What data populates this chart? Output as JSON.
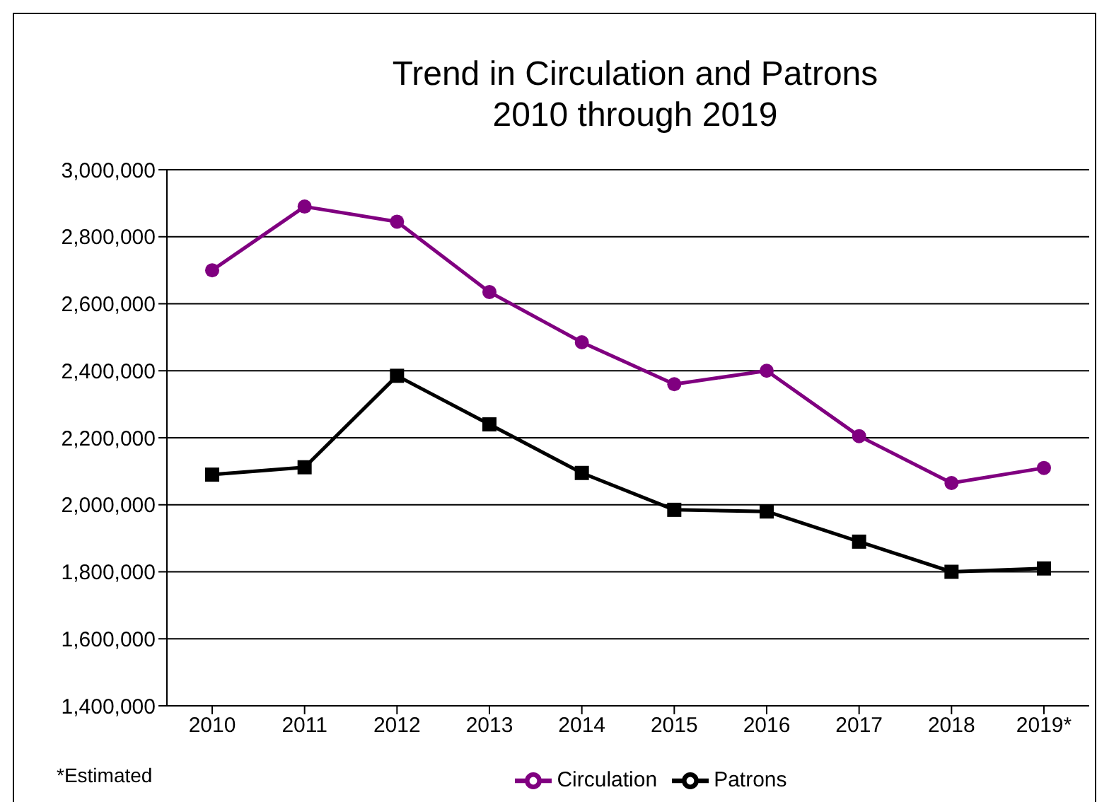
{
  "chart_data": {
    "type": "line",
    "title": "Trend in Circulation and Patrons\n2010 through 2019",
    "categories": [
      "2010",
      "2011",
      "2012",
      "2013",
      "2014",
      "2015",
      "2016",
      "2017",
      "2018",
      "2019*"
    ],
    "series": [
      {
        "name": "Circulation",
        "color": "#800080",
        "marker": "circle",
        "values": [
          2700000,
          2890000,
          2845000,
          2635000,
          2485000,
          2360000,
          2400000,
          2205000,
          2065000,
          2110000
        ]
      },
      {
        "name": "Patrons",
        "color": "#000000",
        "marker": "square",
        "values": [
          2090000,
          2112000,
          2385000,
          2240000,
          2095000,
          1985000,
          1980000,
          1890000,
          1800000,
          1810000
        ]
      }
    ],
    "ylim": [
      1400000,
      3000000
    ],
    "yticks": [
      {
        "value": 1400000,
        "label": "1,400,000"
      },
      {
        "value": 1600000,
        "label": "1,600,000"
      },
      {
        "value": 1800000,
        "label": "1,800,000"
      },
      {
        "value": 2000000,
        "label": "2,000,000"
      },
      {
        "value": 2200000,
        "label": "2,200,000"
      },
      {
        "value": 2400000,
        "label": "2,400,000"
      },
      {
        "value": 2600000,
        "label": "2,600,000"
      },
      {
        "value": 2800000,
        "label": "2,800,000"
      },
      {
        "value": 3000000,
        "label": "3,000,000"
      }
    ],
    "grid": "y",
    "legend": "bottom",
    "line_style": "solid",
    "annotations": [
      "*Estimated"
    ]
  }
}
